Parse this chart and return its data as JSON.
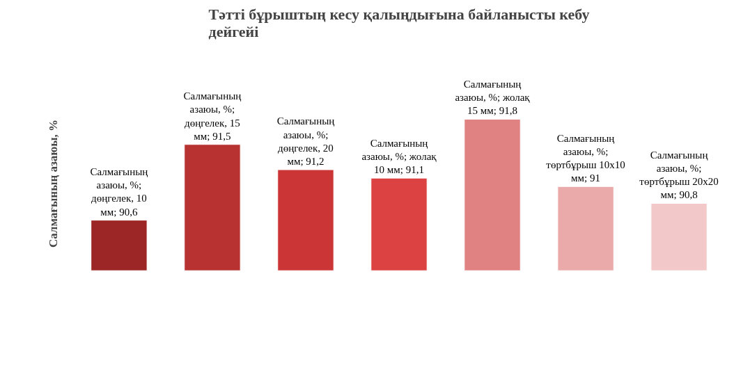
{
  "chart_data": {
    "type": "bar",
    "title": "Тәтті бұрыштың кесу қалыңдығына байланысты кебу дейгейі",
    "ylabel": "Салмағының азаюы, %",
    "categories": [
      null,
      null,
      null,
      null,
      null,
      null,
      null
    ],
    "values": [
      90.6,
      91.5,
      91.2,
      91.1,
      91.8,
      91,
      90.8
    ],
    "colors": [
      "#9c2626",
      "#b83232",
      "#cc3535",
      "#dc4242",
      "#e08282",
      "#eaaaaa",
      "#f2c8c8"
    ],
    "value_labels": [
      "Салмағының азаюы, %; дөңгелек, 10 мм; 90,6",
      "Салмағының азаюы, %; дөңгелек, 15 мм; 91,5",
      "Салмағының азаюы, %; дөңгелек, 20 мм; 91,2",
      "Салмағының азаюы, %; жолақ 10 мм; 91,1",
      "Салмағының азаюы, %; жолақ 15 мм; 91,8",
      "Салмағының азаюы, %; төртбұрыш 10х10 мм; 91",
      "Салмағының азаюы, %; төртбұрыш 20х20 мм; 90,8"
    ],
    "ylim": [
      90,
      91.8
    ],
    "grid": false
  }
}
